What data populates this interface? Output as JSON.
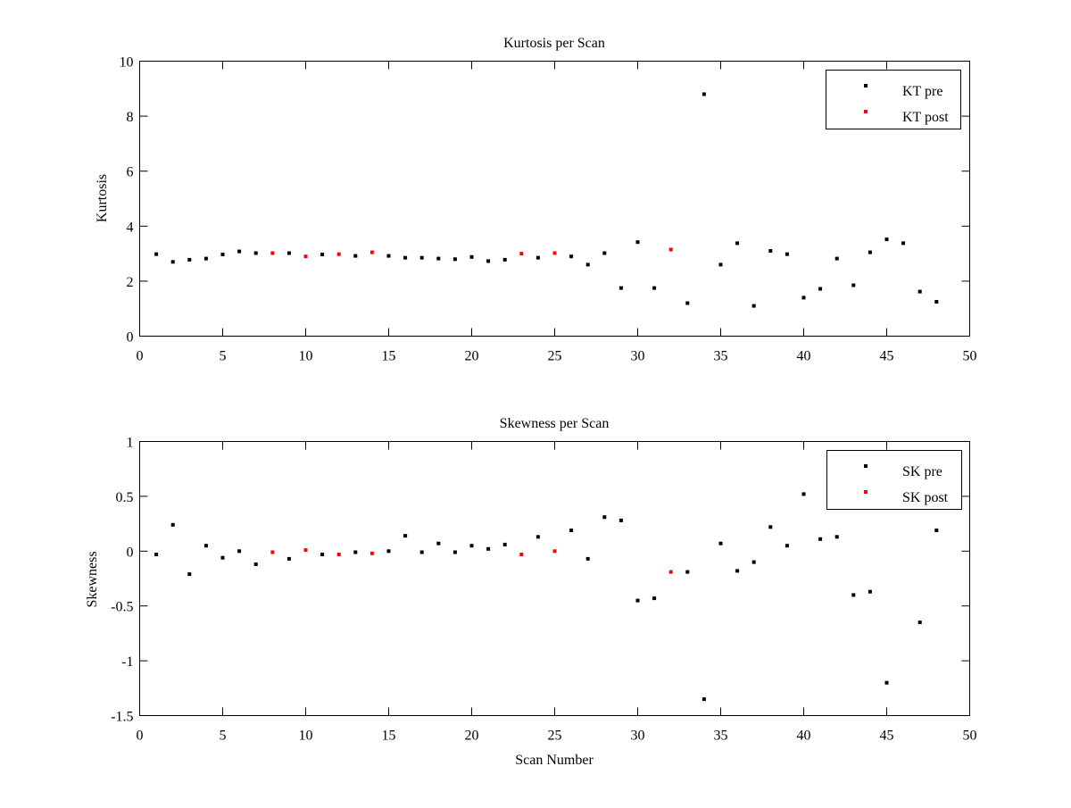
{
  "chart_data": [
    {
      "type": "scatter",
      "title": "Kurtosis per Scan",
      "xlabel": "",
      "ylabel": "Kurtosis",
      "xlim": [
        0,
        50
      ],
      "ylim": [
        0,
        10
      ],
      "xticks": [
        "0",
        "5",
        "10",
        "15",
        "20",
        "25",
        "30",
        "35",
        "40",
        "45",
        "50"
      ],
      "yticks": [
        "0",
        "2",
        "4",
        "6",
        "8",
        "10"
      ],
      "grid": false,
      "legend_position": "top-right",
      "series": [
        {
          "name": "KT pre",
          "color": "#000000",
          "points": [
            [
              1,
              2.98
            ],
            [
              2,
              2.7
            ],
            [
              3,
              2.78
            ],
            [
              4,
              2.82
            ],
            [
              5,
              2.97
            ],
            [
              6,
              3.08
            ],
            [
              7,
              3.02
            ],
            [
              9,
              3.02
            ],
            [
              11,
              2.97
            ],
            [
              13,
              2.92
            ],
            [
              15,
              2.92
            ],
            [
              16,
              2.85
            ],
            [
              17,
              2.85
            ],
            [
              18,
              2.82
            ],
            [
              19,
              2.8
            ],
            [
              20,
              2.88
            ],
            [
              21,
              2.73
            ],
            [
              22,
              2.78
            ],
            [
              24,
              2.85
            ],
            [
              26,
              2.9
            ],
            [
              27,
              2.6
            ],
            [
              28,
              3.02
            ],
            [
              29,
              1.75
            ],
            [
              30,
              3.42
            ],
            [
              31,
              1.75
            ],
            [
              33,
              1.2
            ],
            [
              34,
              8.8
            ],
            [
              35,
              2.6
            ],
            [
              36,
              3.38
            ],
            [
              37,
              1.1
            ],
            [
              38,
              3.1
            ],
            [
              39,
              2.98
            ],
            [
              40,
              1.4
            ],
            [
              41,
              1.72
            ],
            [
              42,
              2.82
            ],
            [
              43,
              1.85
            ],
            [
              44,
              3.05
            ],
            [
              45,
              3.52
            ],
            [
              46,
              3.38
            ],
            [
              47,
              1.62
            ],
            [
              48,
              1.25
            ]
          ]
        },
        {
          "name": "KT post",
          "color": "#ff0000",
          "points": [
            [
              8,
              3.02
            ],
            [
              10,
              2.9
            ],
            [
              12,
              2.98
            ],
            [
              14,
              3.05
            ],
            [
              23,
              3.0
            ],
            [
              25,
              3.02
            ],
            [
              32,
              3.15
            ]
          ]
        }
      ]
    },
    {
      "type": "scatter",
      "title": "Skewness per Scan",
      "xlabel": "Scan Number",
      "ylabel": "Skewness",
      "xlim": [
        0,
        50
      ],
      "ylim": [
        -1.5,
        1
      ],
      "xticks": [
        "0",
        "5",
        "10",
        "15",
        "20",
        "25",
        "30",
        "35",
        "40",
        "45",
        "50"
      ],
      "yticks": [
        "-1.5",
        "-1",
        "-0.5",
        "0",
        "0.5",
        "1"
      ],
      "grid": false,
      "legend_position": "top-right",
      "series": [
        {
          "name": "SK pre",
          "color": "#000000",
          "points": [
            [
              1,
              -0.03
            ],
            [
              2,
              0.24
            ],
            [
              3,
              -0.21
            ],
            [
              4,
              0.05
            ],
            [
              5,
              -0.06
            ],
            [
              6,
              0.0
            ],
            [
              7,
              -0.12
            ],
            [
              9,
              -0.07
            ],
            [
              11,
              -0.03
            ],
            [
              13,
              -0.01
            ],
            [
              15,
              0.0
            ],
            [
              16,
              0.14
            ],
            [
              17,
              -0.01
            ],
            [
              18,
              0.07
            ],
            [
              19,
              -0.01
            ],
            [
              20,
              0.05
            ],
            [
              21,
              0.02
            ],
            [
              22,
              0.06
            ],
            [
              24,
              0.13
            ],
            [
              26,
              0.19
            ],
            [
              27,
              -0.07
            ],
            [
              28,
              0.31
            ],
            [
              29,
              0.28
            ],
            [
              30,
              -0.45
            ],
            [
              31,
              -0.43
            ],
            [
              33,
              -0.19
            ],
            [
              34,
              -1.35
            ],
            [
              35,
              0.07
            ],
            [
              36,
              -0.18
            ],
            [
              37,
              -0.1
            ],
            [
              38,
              0.22
            ],
            [
              39,
              0.05
            ],
            [
              40,
              0.52
            ],
            [
              41,
              0.11
            ],
            [
              42,
              0.13
            ],
            [
              43,
              -0.4
            ],
            [
              44,
              -0.37
            ],
            [
              45,
              -1.2
            ],
            [
              47,
              -0.65
            ],
            [
              48,
              0.19
            ]
          ]
        },
        {
          "name": "SK post",
          "color": "#ff0000",
          "points": [
            [
              8,
              -0.01
            ],
            [
              10,
              0.01
            ],
            [
              12,
              -0.03
            ],
            [
              14,
              -0.02
            ],
            [
              23,
              -0.03
            ],
            [
              25,
              0.0
            ],
            [
              32,
              -0.19
            ]
          ]
        }
      ]
    }
  ]
}
